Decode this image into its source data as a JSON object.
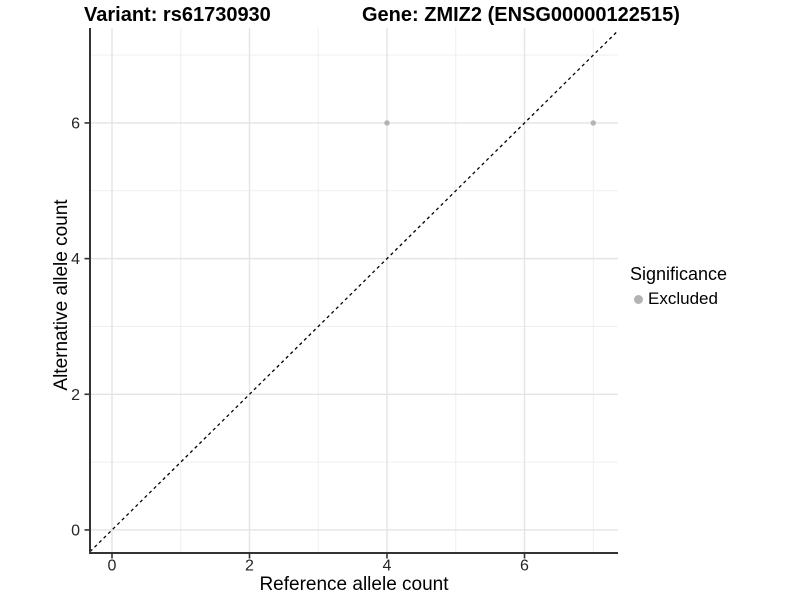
{
  "titles": {
    "variant": "Variant: rs61730930",
    "gene": "Gene: ZMIZ2 (ENSG00000122515)"
  },
  "chart_data": {
    "type": "scatter",
    "titles": [
      "Variant: rs61730930",
      "Gene: ZMIZ2 (ENSG00000122515)"
    ],
    "xlabel": "Reference allele count",
    "ylabel": "Alternative allele count",
    "series": [
      {
        "name": "Excluded",
        "color": "#b3b3b3",
        "points": [
          {
            "x": 4,
            "y": 6
          },
          {
            "x": 7,
            "y": 6
          }
        ]
      }
    ],
    "x_major_ticks": [
      0,
      2,
      4,
      6
    ],
    "x_minor_ticks": [
      1,
      3,
      5,
      7
    ],
    "y_major_ticks": [
      0,
      2,
      4,
      6
    ],
    "y_minor_ticks": [
      1,
      3,
      5,
      7
    ],
    "xlim": [
      -0.32,
      7.36
    ],
    "ylim": [
      -0.34,
      7.4
    ],
    "grid": "major+minor",
    "identity_line": {
      "type": "y=x",
      "style": "dashed",
      "color": "#000000"
    },
    "legend": {
      "title": "Significance",
      "position": "right",
      "entries": [
        {
          "label": "Excluded",
          "color": "#b3b3b3"
        }
      ]
    }
  },
  "colors": {
    "background": "#ffffff",
    "point": "#b3b3b3",
    "axis_line": "#333333",
    "grid_major": "#e4e4e4",
    "grid_minor": "#efefef",
    "identity_line": "#000000",
    "tick_label": "#262626"
  }
}
